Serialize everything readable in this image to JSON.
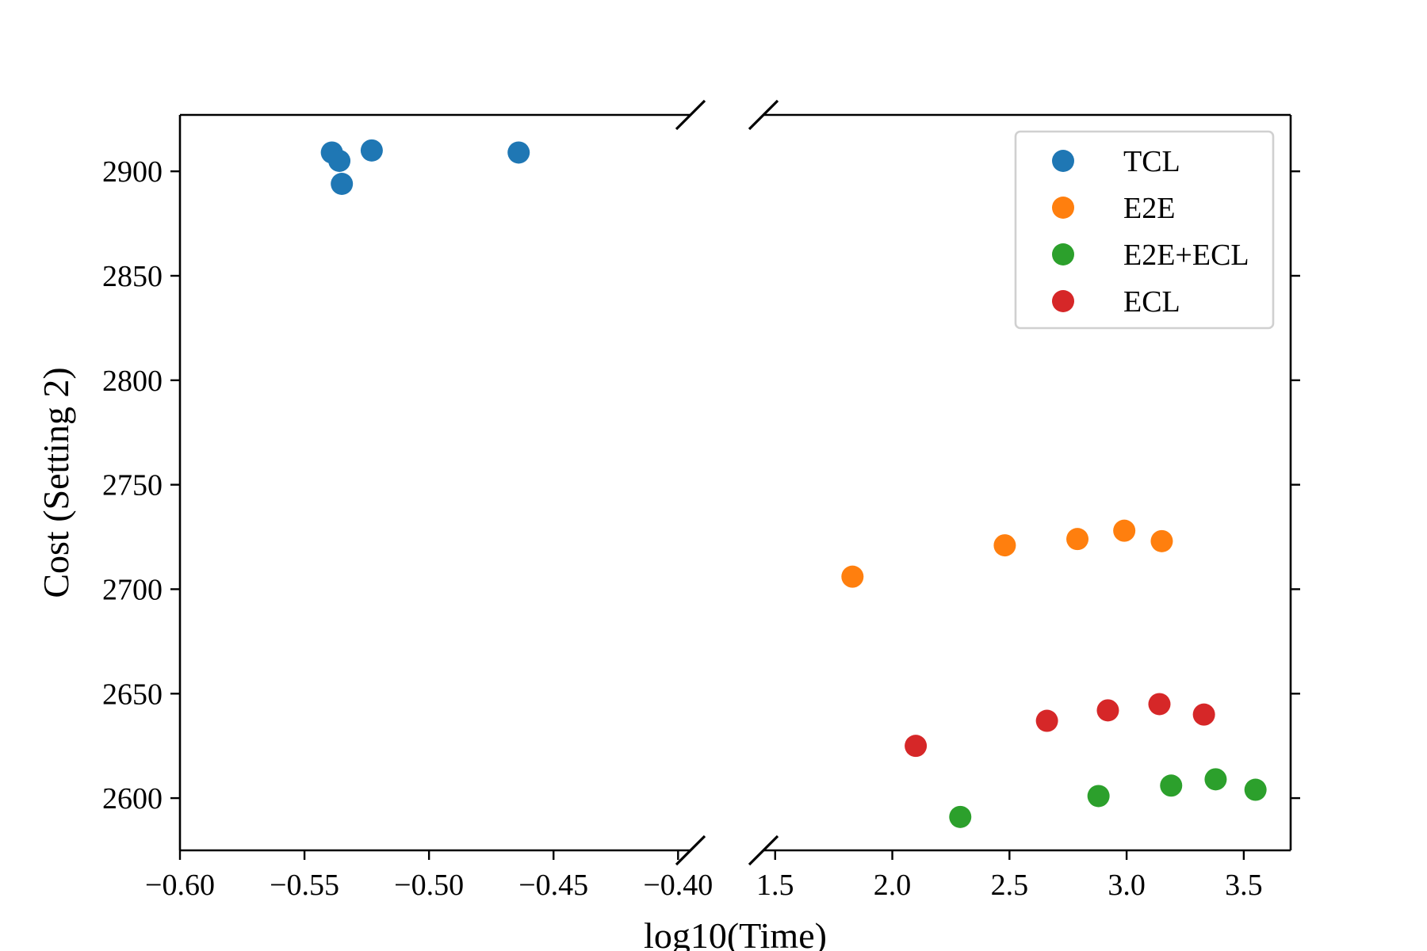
{
  "chart_data": {
    "type": "scatter",
    "broken_x_axis": true,
    "xlabel": "log10(Time)",
    "ylabel": "Cost (Setting 2)",
    "ylim": [
      2575,
      2927
    ],
    "yticks": [
      2600,
      2650,
      2700,
      2750,
      2800,
      2850,
      2900
    ],
    "ytick_labels": [
      "2600",
      "2650",
      "2700",
      "2750",
      "2800",
      "2850",
      "2900"
    ],
    "legend_position": "top-right",
    "grid": false,
    "panels": [
      {
        "xlim": [
          -0.6,
          -0.395
        ],
        "xticks": [
          -0.6,
          -0.55,
          -0.5,
          -0.45,
          -0.4
        ],
        "xtick_labels": [
          "−0.60",
          "−0.55",
          "−0.50",
          "−0.45",
          "−0.40"
        ]
      },
      {
        "xlim": [
          1.45,
          3.7
        ],
        "xticks": [
          1.5,
          2.0,
          2.5,
          3.0,
          3.5
        ],
        "xtick_labels": [
          "1.5",
          "2.0",
          "2.5",
          "3.0",
          "3.5"
        ]
      }
    ],
    "series": [
      {
        "name": "TCL",
        "color": "#1f77b4",
        "points": [
          {
            "x": -0.539,
            "y": 2909
          },
          {
            "x": -0.536,
            "y": 2905
          },
          {
            "x": -0.535,
            "y": 2894
          },
          {
            "x": -0.523,
            "y": 2910
          },
          {
            "x": -0.464,
            "y": 2909
          }
        ]
      },
      {
        "name": "E2E",
        "color": "#ff7f0e",
        "points": [
          {
            "x": 1.83,
            "y": 2706
          },
          {
            "x": 2.48,
            "y": 2721
          },
          {
            "x": 2.79,
            "y": 2724
          },
          {
            "x": 2.99,
            "y": 2728
          },
          {
            "x": 3.15,
            "y": 2723
          }
        ]
      },
      {
        "name": "E2E+ECL",
        "color": "#2ca02c",
        "points": [
          {
            "x": 2.29,
            "y": 2591
          },
          {
            "x": 2.88,
            "y": 2601
          },
          {
            "x": 3.19,
            "y": 2606
          },
          {
            "x": 3.38,
            "y": 2609
          },
          {
            "x": 3.55,
            "y": 2604
          }
        ]
      },
      {
        "name": "ECL",
        "color": "#d62728",
        "points": [
          {
            "x": 2.1,
            "y": 2625
          },
          {
            "x": 2.66,
            "y": 2637
          },
          {
            "x": 2.92,
            "y": 2642
          },
          {
            "x": 3.14,
            "y": 2645
          },
          {
            "x": 3.33,
            "y": 2640
          }
        ]
      }
    ]
  }
}
